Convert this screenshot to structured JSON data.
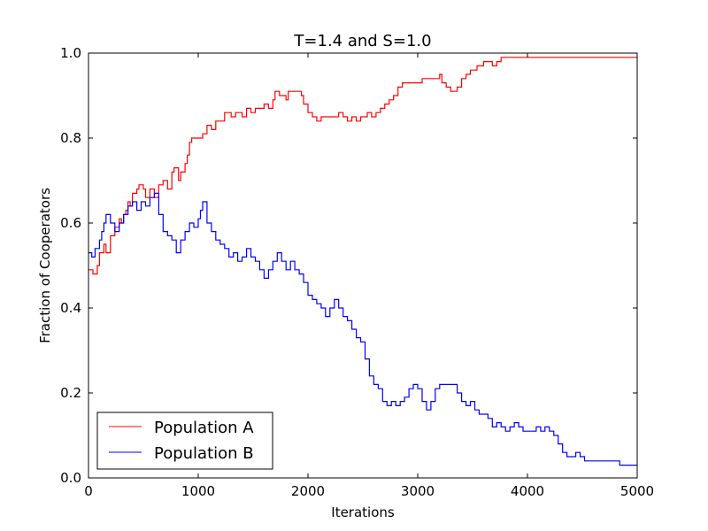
{
  "chart_data": {
    "type": "line",
    "title": "T=1.4 and S=1.0",
    "xlabel": "Iterations",
    "ylabel": "Fraction of Cooperators",
    "xlim": [
      0,
      5000
    ],
    "ylim": [
      0.0,
      1.0
    ],
    "xticks": [
      0,
      1000,
      2000,
      3000,
      4000,
      5000
    ],
    "xtick_labels": [
      "0",
      "1000",
      "2000",
      "3000",
      "4000",
      "5000"
    ],
    "yticks": [
      0.0,
      0.2,
      0.4,
      0.6,
      0.8,
      1.0
    ],
    "ytick_labels": [
      "0.0",
      "0.2",
      "0.4",
      "0.6",
      "0.8",
      "1.0"
    ],
    "grid": false,
    "legend_position": "lower-left",
    "series": [
      {
        "name": "Population A",
        "color": "#ff0000",
        "step": true,
        "points": [
          [
            0,
            0.49
          ],
          [
            40,
            0.48
          ],
          [
            80,
            0.5
          ],
          [
            100,
            0.53
          ],
          [
            140,
            0.55
          ],
          [
            160,
            0.53
          ],
          [
            200,
            0.57
          ],
          [
            240,
            0.59
          ],
          [
            280,
            0.61
          ],
          [
            300,
            0.6
          ],
          [
            320,
            0.62
          ],
          [
            340,
            0.63
          ],
          [
            360,
            0.65
          ],
          [
            380,
            0.64
          ],
          [
            400,
            0.67
          ],
          [
            440,
            0.68
          ],
          [
            460,
            0.69
          ],
          [
            500,
            0.68
          ],
          [
            520,
            0.66
          ],
          [
            560,
            0.68
          ],
          [
            600,
            0.66
          ],
          [
            640,
            0.69
          ],
          [
            680,
            0.7
          ],
          [
            720,
            0.68
          ],
          [
            760,
            0.72
          ],
          [
            780,
            0.73
          ],
          [
            820,
            0.7
          ],
          [
            840,
            0.72
          ],
          [
            880,
            0.74
          ],
          [
            900,
            0.76
          ],
          [
            920,
            0.79
          ],
          [
            940,
            0.8
          ],
          [
            1000,
            0.8
          ],
          [
            1040,
            0.81
          ],
          [
            1080,
            0.83
          ],
          [
            1120,
            0.82
          ],
          [
            1160,
            0.84
          ],
          [
            1200,
            0.84
          ],
          [
            1240,
            0.86
          ],
          [
            1300,
            0.85
          ],
          [
            1340,
            0.86
          ],
          [
            1400,
            0.85
          ],
          [
            1440,
            0.87
          ],
          [
            1480,
            0.86
          ],
          [
            1520,
            0.87
          ],
          [
            1560,
            0.87
          ],
          [
            1600,
            0.88
          ],
          [
            1640,
            0.87
          ],
          [
            1680,
            0.89
          ],
          [
            1700,
            0.91
          ],
          [
            1740,
            0.9
          ],
          [
            1780,
            0.9
          ],
          [
            1800,
            0.89
          ],
          [
            1820,
            0.91
          ],
          [
            1880,
            0.91
          ],
          [
            1940,
            0.9
          ],
          [
            1960,
            0.88
          ],
          [
            2000,
            0.86
          ],
          [
            2040,
            0.85
          ],
          [
            2080,
            0.84
          ],
          [
            2120,
            0.85
          ],
          [
            2200,
            0.85
          ],
          [
            2240,
            0.85
          ],
          [
            2280,
            0.86
          ],
          [
            2320,
            0.85
          ],
          [
            2360,
            0.84
          ],
          [
            2400,
            0.85
          ],
          [
            2440,
            0.84
          ],
          [
            2480,
            0.85
          ],
          [
            2540,
            0.86
          ],
          [
            2580,
            0.85
          ],
          [
            2620,
            0.86
          ],
          [
            2660,
            0.87
          ],
          [
            2700,
            0.88
          ],
          [
            2740,
            0.89
          ],
          [
            2780,
            0.9
          ],
          [
            2820,
            0.92
          ],
          [
            2860,
            0.93
          ],
          [
            2940,
            0.93
          ],
          [
            3020,
            0.93
          ],
          [
            3040,
            0.94
          ],
          [
            3160,
            0.94
          ],
          [
            3200,
            0.95
          ],
          [
            3220,
            0.93
          ],
          [
            3260,
            0.92
          ],
          [
            3300,
            0.91
          ],
          [
            3360,
            0.92
          ],
          [
            3400,
            0.94
          ],
          [
            3440,
            0.95
          ],
          [
            3480,
            0.96
          ],
          [
            3540,
            0.97
          ],
          [
            3600,
            0.98
          ],
          [
            3680,
            0.97
          ],
          [
            3720,
            0.98
          ],
          [
            3760,
            0.99
          ],
          [
            3800,
            0.99
          ],
          [
            4000,
            0.99
          ],
          [
            4400,
            0.99
          ],
          [
            4800,
            0.99
          ],
          [
            5000,
            0.99
          ]
        ]
      },
      {
        "name": "Population B",
        "color": "#0000ff",
        "step": true,
        "points": [
          [
            0,
            0.53
          ],
          [
            30,
            0.52
          ],
          [
            60,
            0.54
          ],
          [
            100,
            0.56
          ],
          [
            120,
            0.58
          ],
          [
            140,
            0.6
          ],
          [
            160,
            0.62
          ],
          [
            200,
            0.6
          ],
          [
            240,
            0.58
          ],
          [
            280,
            0.6
          ],
          [
            320,
            0.62
          ],
          [
            360,
            0.64
          ],
          [
            400,
            0.65
          ],
          [
            440,
            0.63
          ],
          [
            480,
            0.65
          ],
          [
            520,
            0.64
          ],
          [
            560,
            0.66
          ],
          [
            600,
            0.67
          ],
          [
            640,
            0.62
          ],
          [
            680,
            0.58
          ],
          [
            720,
            0.57
          ],
          [
            760,
            0.56
          ],
          [
            800,
            0.53
          ],
          [
            840,
            0.56
          ],
          [
            880,
            0.58
          ],
          [
            920,
            0.6
          ],
          [
            960,
            0.59
          ],
          [
            1000,
            0.61
          ],
          [
            1020,
            0.63
          ],
          [
            1040,
            0.65
          ],
          [
            1080,
            0.6
          ],
          [
            1120,
            0.58
          ],
          [
            1160,
            0.56
          ],
          [
            1200,
            0.55
          ],
          [
            1240,
            0.54
          ],
          [
            1280,
            0.52
          ],
          [
            1320,
            0.53
          ],
          [
            1360,
            0.51
          ],
          [
            1400,
            0.52
          ],
          [
            1440,
            0.54
          ],
          [
            1480,
            0.52
          ],
          [
            1520,
            0.51
          ],
          [
            1560,
            0.49
          ],
          [
            1600,
            0.47
          ],
          [
            1640,
            0.49
          ],
          [
            1680,
            0.51
          ],
          [
            1720,
            0.53
          ],
          [
            1760,
            0.51
          ],
          [
            1800,
            0.49
          ],
          [
            1840,
            0.51
          ],
          [
            1880,
            0.49
          ],
          [
            1920,
            0.48
          ],
          [
            1960,
            0.46
          ],
          [
            2000,
            0.43
          ],
          [
            2040,
            0.42
          ],
          [
            2080,
            0.41
          ],
          [
            2120,
            0.4
          ],
          [
            2160,
            0.38
          ],
          [
            2200,
            0.4
          ],
          [
            2240,
            0.42
          ],
          [
            2280,
            0.4
          ],
          [
            2320,
            0.38
          ],
          [
            2360,
            0.37
          ],
          [
            2400,
            0.35
          ],
          [
            2440,
            0.33
          ],
          [
            2480,
            0.32
          ],
          [
            2520,
            0.28
          ],
          [
            2560,
            0.24
          ],
          [
            2600,
            0.22
          ],
          [
            2640,
            0.21
          ],
          [
            2680,
            0.18
          ],
          [
            2720,
            0.17
          ],
          [
            2760,
            0.18
          ],
          [
            2800,
            0.17
          ],
          [
            2840,
            0.18
          ],
          [
            2880,
            0.19
          ],
          [
            2920,
            0.21
          ],
          [
            2960,
            0.22
          ],
          [
            3000,
            0.21
          ],
          [
            3040,
            0.18
          ],
          [
            3080,
            0.16
          ],
          [
            3120,
            0.18
          ],
          [
            3160,
            0.21
          ],
          [
            3200,
            0.22
          ],
          [
            3280,
            0.22
          ],
          [
            3320,
            0.22
          ],
          [
            3360,
            0.2
          ],
          [
            3400,
            0.18
          ],
          [
            3440,
            0.17
          ],
          [
            3480,
            0.18
          ],
          [
            3520,
            0.16
          ],
          [
            3560,
            0.15
          ],
          [
            3600,
            0.15
          ],
          [
            3640,
            0.14
          ],
          [
            3680,
            0.12
          ],
          [
            3720,
            0.13
          ],
          [
            3760,
            0.12
          ],
          [
            3800,
            0.11
          ],
          [
            3840,
            0.12
          ],
          [
            3880,
            0.13
          ],
          [
            3920,
            0.12
          ],
          [
            3960,
            0.11
          ],
          [
            4000,
            0.11
          ],
          [
            4080,
            0.12
          ],
          [
            4120,
            0.11
          ],
          [
            4160,
            0.12
          ],
          [
            4200,
            0.11
          ],
          [
            4240,
            0.1
          ],
          [
            4280,
            0.08
          ],
          [
            4320,
            0.06
          ],
          [
            4360,
            0.05
          ],
          [
            4400,
            0.05
          ],
          [
            4440,
            0.06
          ],
          [
            4480,
            0.05
          ],
          [
            4520,
            0.04
          ],
          [
            4800,
            0.04
          ],
          [
            4840,
            0.03
          ],
          [
            5000,
            0.03
          ]
        ]
      }
    ]
  }
}
